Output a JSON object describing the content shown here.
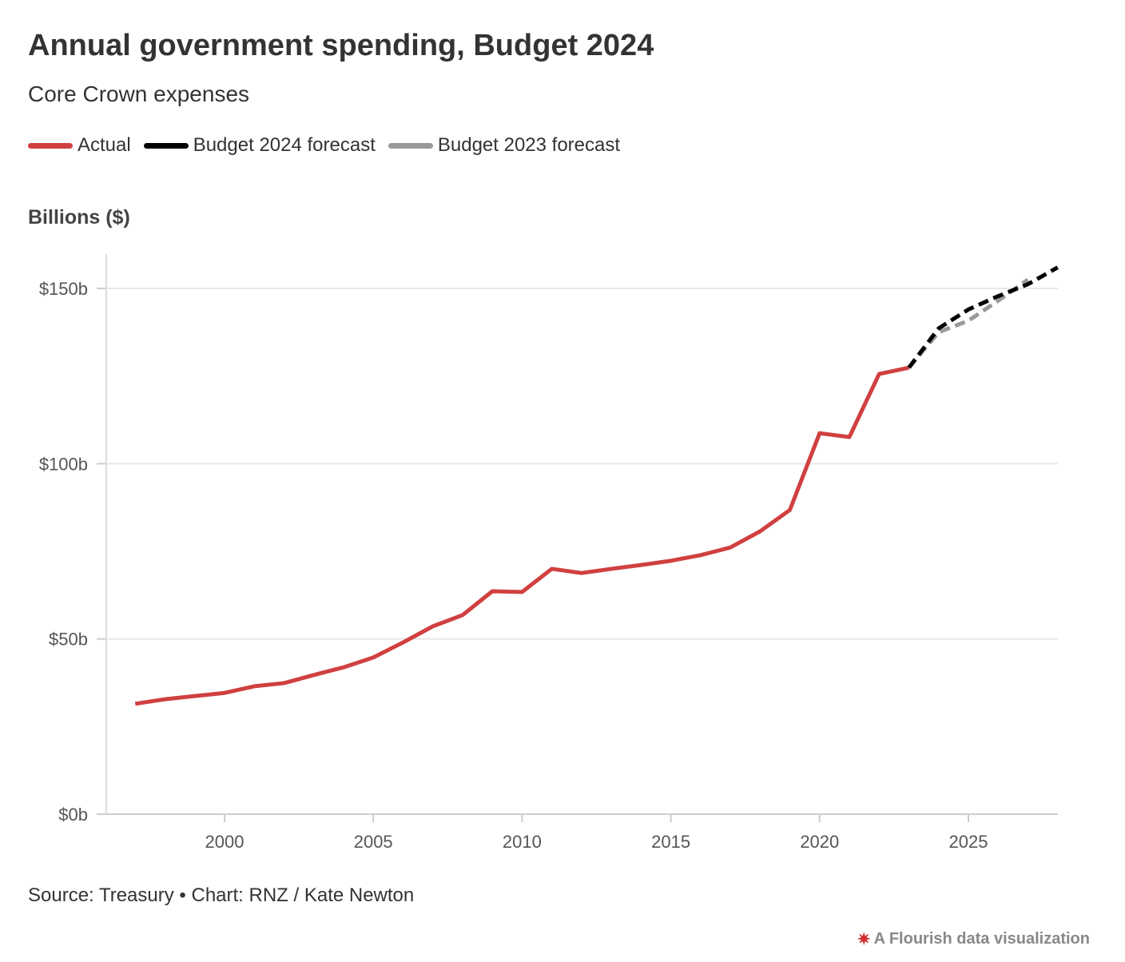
{
  "chart_data": {
    "type": "line",
    "title": "Annual government spending, Budget 2024",
    "subtitle": "Core Crown expenses",
    "ylabel": "Billions ($)",
    "xlabel": "",
    "xlim": [
      1996.5,
      2028
    ],
    "ylim": [
      0,
      160
    ],
    "x_ticks": [
      2000,
      2005,
      2010,
      2015,
      2020,
      2025
    ],
    "y_ticks": [
      0,
      50,
      100,
      150
    ],
    "y_tick_labels": [
      "$0b",
      "$50b",
      "$100b",
      "$150b"
    ],
    "grid": "horizontal",
    "legend_placement": "top-left",
    "series": [
      {
        "name": "Actual",
        "color": "#d04040",
        "dash": false,
        "x": [
          1997,
          1998,
          1999,
          2000,
          2001,
          2002,
          2003,
          2004,
          2005,
          2006,
          2007,
          2008,
          2009,
          2010,
          2011,
          2012,
          2013,
          2014,
          2015,
          2016,
          2017,
          2018,
          2019,
          2020,
          2021,
          2022,
          2023
        ],
        "y": [
          31.5,
          32.8,
          33.7,
          34.6,
          36.5,
          37.4,
          39.7,
          41.9,
          44.7,
          49.0,
          53.6,
          56.8,
          63.6,
          63.4,
          70.0,
          68.8,
          70.0,
          71.1,
          72.3,
          73.9,
          76.1,
          80.7,
          86.8,
          108.7,
          107.6,
          125.6,
          127.4
        ]
      },
      {
        "name": "Budget 2023 forecast",
        "color": "#999999",
        "dash": true,
        "x": [
          2023,
          2024,
          2025,
          2026,
          2027
        ],
        "y": [
          127.4,
          137.5,
          140.8,
          146.5,
          152.5
        ]
      },
      {
        "name": "Budget 2024 forecast",
        "color": "#000000",
        "dash": true,
        "x": [
          2023,
          2024,
          2025,
          2026,
          2027,
          2028
        ],
        "y": [
          127.4,
          138.6,
          144.0,
          147.8,
          151.2,
          156.0
        ]
      }
    ]
  },
  "legend": [
    "Actual",
    "Budget 2024 forecast",
    "Budget 2023 forecast"
  ],
  "legend_colors": [
    "#d04040",
    "#000000",
    "#999999"
  ],
  "source": "Source: Treasury • Chart: RNZ / Kate Newton",
  "branding": "A Flourish data visualization"
}
